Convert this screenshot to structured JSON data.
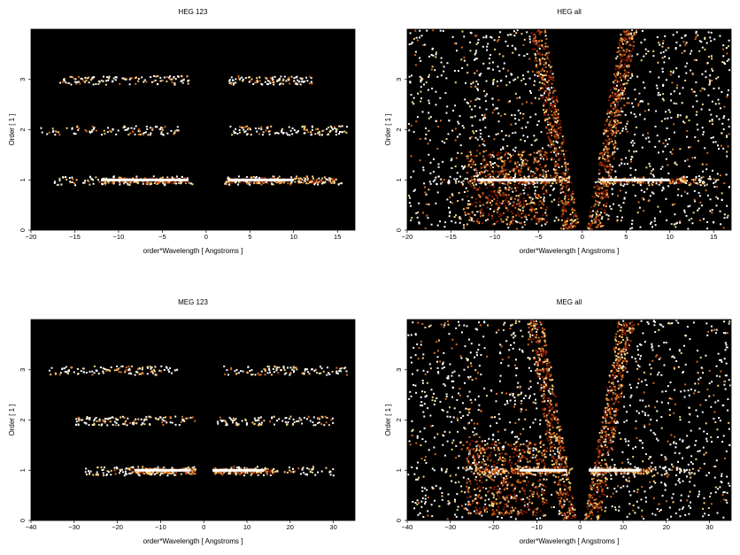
{
  "colors": {
    "background": "#000000",
    "low": "#8a1a00",
    "mid": "#d2691e",
    "high": "#ffd27a",
    "peak": "#ffffff"
  },
  "chart_data": [
    {
      "type": "heatmap",
      "title": "HEG 123",
      "xlabel": "order*Wavelength [ Angstroms ]",
      "ylabel": "Order [ 1 ]",
      "xlim": [
        -20,
        17
      ],
      "ylim": [
        0,
        4
      ],
      "xticks": [
        "−20",
        "−15",
        "−10",
        "−5",
        "0",
        "5",
        "10",
        "15"
      ],
      "yticks": [
        "0",
        "1",
        "2",
        "3"
      ],
      "bands": [
        {
          "order": 1,
          "x_ranges": [
            [
              -17.5,
              -1.5
            ],
            [
              2,
              15.5
            ]
          ],
          "dense": [
            [
              -12,
              -2
            ],
            [
              2,
              15
            ]
          ],
          "peak": [
            [
              -12,
              -2
            ],
            [
              2.5,
              10
            ]
          ]
        },
        {
          "order": 2,
          "x_ranges": [
            [
              -19,
              -3
            ],
            [
              2.5,
              16
            ]
          ]
        },
        {
          "order": 3,
          "x_ranges": [
            [
              -17,
              -2
            ],
            [
              2.5,
              12
            ]
          ]
        }
      ],
      "wedges": false
    },
    {
      "type": "heatmap",
      "title": "HEG all",
      "xlabel": "order*Wavelength [ Angstroms ]",
      "ylabel": "Order [ 1 ]",
      "xlim": [
        -20,
        17
      ],
      "ylim": [
        0,
        4
      ],
      "xticks": [
        "−20",
        "−15",
        "−10",
        "−5",
        "0",
        "5",
        "10",
        "15"
      ],
      "yticks": [
        "0",
        "1",
        "2",
        "3"
      ],
      "bands": [
        {
          "order": 1,
          "x_ranges": [
            [
              -17.5,
              -1.5
            ],
            [
              2,
              15.5
            ]
          ],
          "dense": [
            [
              -12.5,
              -2
            ],
            [
              2,
              13
            ]
          ],
          "peak": [
            [
              -12,
              -3
            ],
            [
              2,
              10
            ]
          ]
        }
      ],
      "wedges": true
    },
    {
      "type": "heatmap",
      "title": "MEG 123",
      "xlabel": "order*Wavelength [ Angstroms ]",
      "ylabel": "Order [ 1 ]",
      "xlim": [
        -40,
        35
      ],
      "ylim": [
        0,
        4
      ],
      "xticks": [
        "−40",
        "−30",
        "−20",
        "−10",
        "0",
        "10",
        "20",
        "30"
      ],
      "yticks": [
        "0",
        "1",
        "2",
        "3"
      ],
      "bands": [
        {
          "order": 1,
          "x_ranges": [
            [
              -28,
              -2
            ],
            [
              2,
              30
            ]
          ],
          "dense": [
            [
              -17,
              -2
            ],
            [
              2,
              16
            ]
          ],
          "peak": [
            [
              -16,
              -3
            ],
            [
              2,
              14
            ]
          ]
        },
        {
          "order": 2,
          "x_ranges": [
            [
              -30,
              -2
            ],
            [
              3,
              30
            ]
          ]
        },
        {
          "order": 3,
          "x_ranges": [
            [
              -36,
              -6
            ],
            [
              4,
              33
            ]
          ]
        }
      ],
      "wedges": false
    },
    {
      "type": "heatmap",
      "title": "MEG all",
      "xlabel": "order*Wavelength [ Angstroms ]",
      "ylabel": "Order [ 1 ]",
      "xlim": [
        -40,
        35
      ],
      "ylim": [
        0,
        4
      ],
      "xticks": [
        "−40",
        "−30",
        "−20",
        "−10",
        "0",
        "10",
        "20",
        "30"
      ],
      "yticks": [
        "0",
        "1",
        "2",
        "3"
      ],
      "bands": [
        {
          "order": 1,
          "x_ranges": [
            [
              -28,
              -2
            ],
            [
              2,
              30
            ]
          ],
          "dense": [
            [
              -25,
              -2
            ],
            [
              2,
              16
            ]
          ],
          "peak": [
            [
              -14,
              -3
            ],
            [
              2,
              14
            ]
          ]
        }
      ],
      "wedges": true
    }
  ]
}
